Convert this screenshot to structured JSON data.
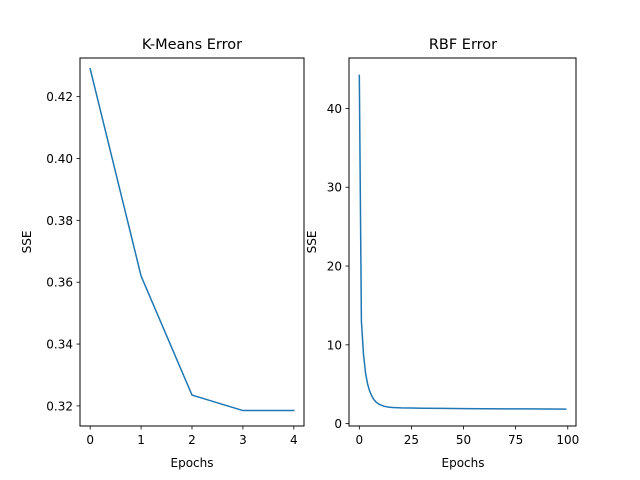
{
  "chart_data": [
    {
      "type": "line",
      "title": "K-Means Error",
      "xlabel": "Epochs",
      "ylabel": "SSE",
      "xlim": [
        -0.2,
        4.2
      ],
      "ylim": [
        0.3135,
        0.4325
      ],
      "xticks": [
        0,
        1,
        2,
        3,
        4
      ],
      "xtick_labels": [
        "0",
        "1",
        "2",
        "3",
        "4"
      ],
      "yticks": [
        0.32,
        0.34,
        0.36,
        0.38,
        0.4,
        0.42
      ],
      "ytick_labels": [
        "0.32",
        "0.34",
        "0.36",
        "0.38",
        "0.40",
        "0.42"
      ],
      "grid": false,
      "series": [
        {
          "color": "#1f77b4",
          "x": [
            0,
            1,
            2,
            3,
            4
          ],
          "y": [
            0.429,
            0.362,
            0.3235,
            0.3185,
            0.3185
          ]
        }
      ]
    },
    {
      "type": "line",
      "title": "RBF Error",
      "xlabel": "Epochs",
      "ylabel": "SSE",
      "xlim": [
        -4.95,
        103.95
      ],
      "ylim": [
        -0.3,
        46.4
      ],
      "xticks": [
        0,
        25,
        50,
        75,
        100
      ],
      "xtick_labels": [
        "0",
        "25",
        "50",
        "75",
        "100"
      ],
      "yticks": [
        0,
        10,
        20,
        30,
        40
      ],
      "ytick_labels": [
        "0",
        "10",
        "20",
        "30",
        "40"
      ],
      "grid": false,
      "series": [
        {
          "color": "#1f77b4",
          "x": [
            0,
            1,
            2,
            3,
            4,
            5,
            6,
            7,
            8,
            9,
            10,
            12,
            14,
            16,
            20,
            25,
            30,
            40,
            50,
            60,
            70,
            80,
            90,
            99
          ],
          "y": [
            44.2,
            13.0,
            8.8,
            6.4,
            5.0,
            4.1,
            3.5,
            3.05,
            2.75,
            2.55,
            2.4,
            2.2,
            2.1,
            2.05,
            2.0,
            1.98,
            1.96,
            1.93,
            1.91,
            1.89,
            1.88,
            1.87,
            1.86,
            1.85
          ]
        }
      ]
    }
  ]
}
